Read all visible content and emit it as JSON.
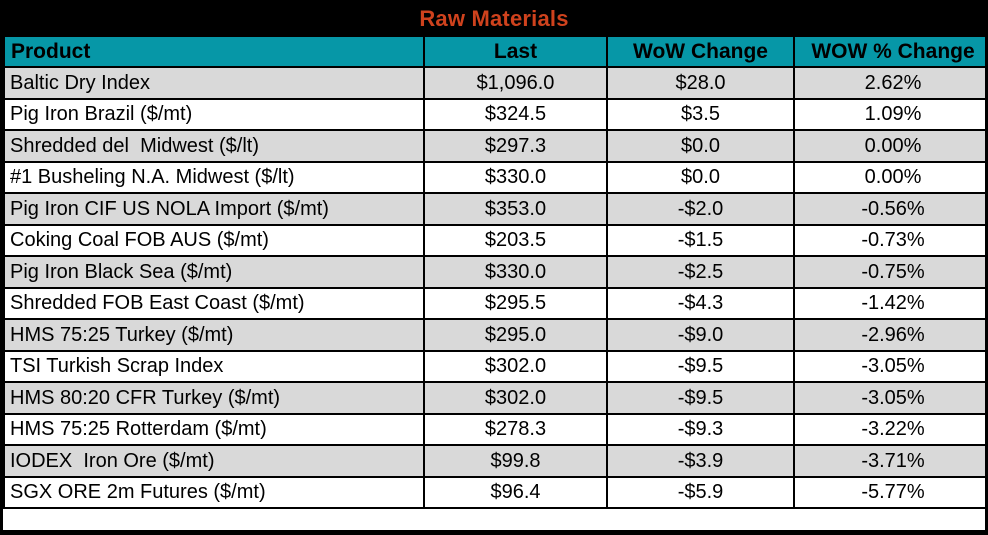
{
  "title": "Raw Materials",
  "colors": {
    "title_bar_bg": "#000000",
    "title_text": "#CF421D",
    "header_bg": "#0697A7",
    "header_text": "#000000",
    "row_alt_bg": "#D9D9D9",
    "row_bg": "#FFFFFF",
    "grid_border": "#000000"
  },
  "chart_data": {
    "type": "table",
    "title": "Raw Materials",
    "columns": [
      "Product",
      "Last",
      "WoW Change",
      "WOW % Change"
    ],
    "rows": [
      [
        "Baltic Dry Index",
        "$1,096.0",
        "$28.0",
        "2.62%"
      ],
      [
        "Pig Iron Brazil ($/mt)",
        "$324.5",
        "$3.5",
        "1.09%"
      ],
      [
        "Shredded del  Midwest ($/lt)",
        "$297.3",
        "$0.0",
        "0.00%"
      ],
      [
        "#1 Busheling N.A. Midwest ($/lt)",
        "$330.0",
        "$0.0",
        "0.00%"
      ],
      [
        "Pig Iron CIF US NOLA Import ($/mt)",
        "$353.0",
        "-$2.0",
        "-0.56%"
      ],
      [
        "Coking Coal FOB AUS ($/mt)",
        "$203.5",
        "-$1.5",
        "-0.73%"
      ],
      [
        "Pig Iron Black Sea ($/mt)",
        "$330.0",
        "-$2.5",
        "-0.75%"
      ],
      [
        "Shredded FOB East Coast ($/mt)",
        "$295.5",
        "-$4.3",
        "-1.42%"
      ],
      [
        "HMS 75:25 Turkey ($/mt)",
        "$295.0",
        "-$9.0",
        "-2.96%"
      ],
      [
        "TSI Turkish Scrap Index",
        "$302.0",
        "-$9.5",
        "-3.05%"
      ],
      [
        "HMS 80:20 CFR Turkey ($/mt)",
        "$302.0",
        "-$9.5",
        "-3.05%"
      ],
      [
        "HMS 75:25 Rotterdam ($/mt)",
        "$278.3",
        "-$9.3",
        "-3.22%"
      ],
      [
        "IODEX  Iron Ore ($/mt)",
        "$99.8",
        "-$3.9",
        "-3.71%"
      ],
      [
        "SGX ORE 2m Futures ($/mt)",
        "$96.4",
        "-$5.9",
        "-5.77%"
      ]
    ]
  }
}
